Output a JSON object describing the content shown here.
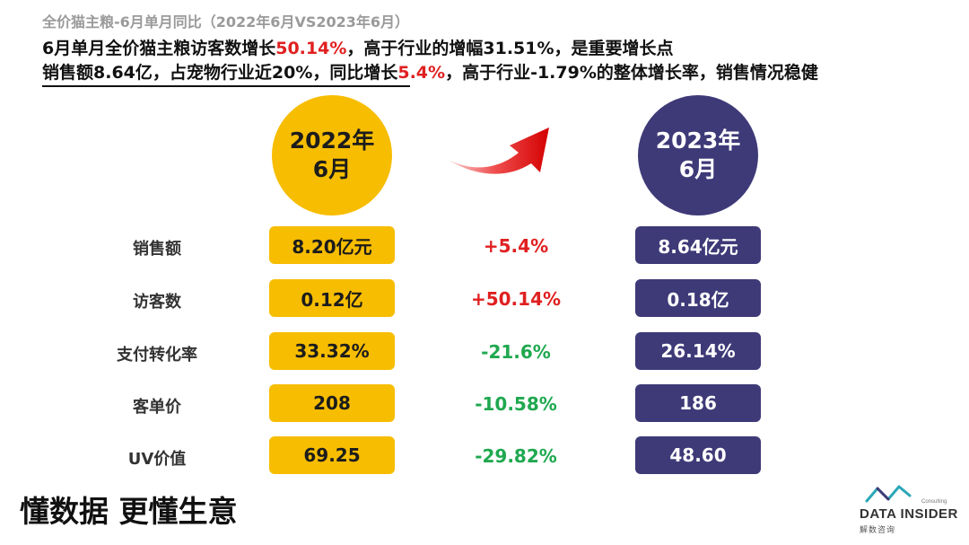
{
  "header": {
    "subtitle": "全价猫主粮-6月单月同比（2022年6月VS2023年6月）",
    "line1": {
      "part1": "6月单月全价猫主粮访客数增长",
      "highlight1": "50.14%",
      "part2": "，高于行业的增幅31.51%，是重要增长点"
    },
    "line2": {
      "part1": "销售额8.64亿，占宠物行业近20%，同比增长",
      "highlight1": "5.4%",
      "part2": "，高于行业-1.79%的整体增长率，销售情况稳健"
    }
  },
  "periods": {
    "left": {
      "year": "2022年",
      "month": "6月"
    },
    "right": {
      "year": "2023年",
      "month": "6月"
    }
  },
  "metrics": [
    {
      "label": "销售额",
      "v2022": "8.20亿元",
      "change": "+5.4%",
      "v2023": "8.64亿元"
    },
    {
      "label": "访客数",
      "v2022": "0.12亿",
      "change": "+50.14%",
      "v2023": "0.18亿"
    },
    {
      "label": "支付转化率",
      "v2022": "33.32%",
      "change": "-21.6%",
      "v2023": "26.14%"
    },
    {
      "label": "客单价",
      "v2022": "208",
      "change": "-10.58%",
      "v2023": "186"
    },
    {
      "label": "UV价值",
      "v2022": "69.25",
      "change": "-29.82%",
      "v2023": "48.60"
    }
  ],
  "footer": {
    "slogan": "懂数据 更懂生意",
    "logo_brand": "DATA INSIDER",
    "logo_tag": "Consulting",
    "logo_cn": "解数咨询"
  },
  "colors": {
    "gold": "#f7bd00",
    "navy": "#3e3a78",
    "increase": "#e02020",
    "decrease": "#1fa84f",
    "subtitle_gray": "#9a9a9a"
  },
  "icons": {
    "trend": "curved-up-arrow-icon",
    "logo": "data-insider-logo-icon"
  }
}
